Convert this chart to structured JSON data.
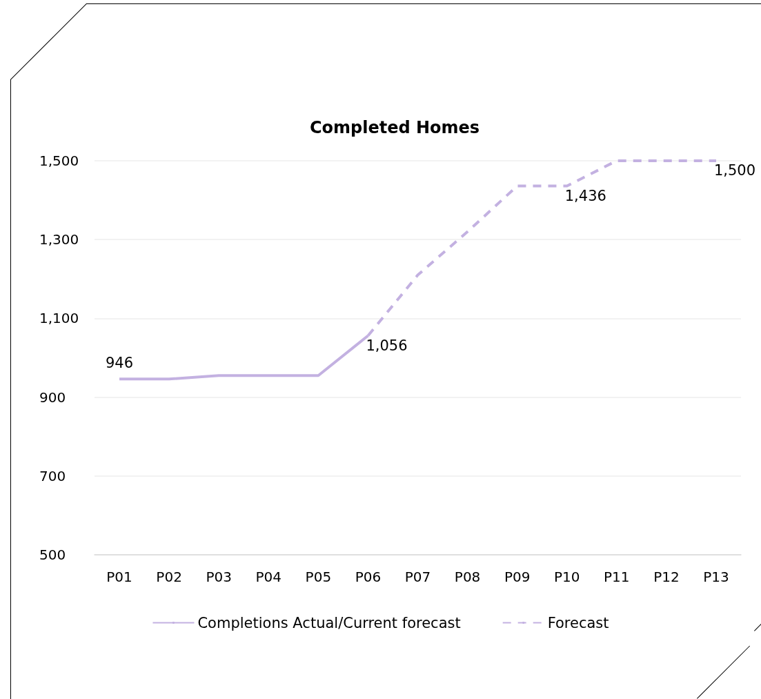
{
  "chart_data": {
    "type": "line",
    "title": "Completed Homes",
    "categories": [
      "P01",
      "P02",
      "P03",
      "P04",
      "P05",
      "P06",
      "P07",
      "P08",
      "P09",
      "P10",
      "P11",
      "P12",
      "P13"
    ],
    "series": [
      {
        "name": "Completions Actual/Current forecast",
        "color": "#c3b1e1",
        "line_style": "solid",
        "values": [
          946,
          946,
          955,
          955,
          955,
          1056,
          null,
          null,
          null,
          null,
          null,
          null,
          null
        ],
        "value_labels": [
          "946",
          null,
          null,
          null,
          null,
          null,
          null,
          null,
          null,
          null,
          null,
          null,
          null
        ]
      },
      {
        "name": "Forecast",
        "color": "#c3b1e1",
        "line_style": "dashed",
        "values": [
          null,
          null,
          null,
          null,
          null,
          1056,
          1210,
          1320,
          1436,
          1436,
          1500,
          1500,
          1500
        ],
        "value_labels": [
          null,
          null,
          null,
          null,
          null,
          "1,056",
          null,
          null,
          null,
          "1,436",
          null,
          null,
          "1,500"
        ]
      }
    ],
    "ylim": [
      500,
      1500
    ],
    "yticks": [
      500,
      700,
      900,
      {
        "value": 1100,
        "label": "1,100"
      },
      {
        "value": 1300,
        "label": "1,300"
      },
      {
        "value": 1500,
        "label": "1,500"
      }
    ],
    "grid": "y",
    "legend": "bottom",
    "marker": "none"
  }
}
